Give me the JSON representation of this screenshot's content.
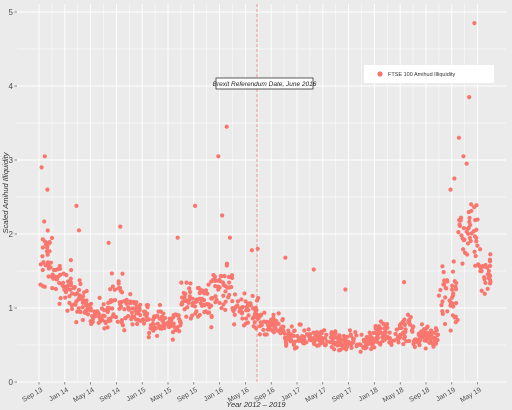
{
  "chart_data": {
    "type": "scatter",
    "xlabel": "Year 2012 – 2019",
    "ylabel": "Scaled Amihud Illiquidity",
    "ylim": [
      0,
      5
    ],
    "y_ticks": [
      "0",
      "1",
      "2",
      "3",
      "4",
      "5"
    ],
    "x_ticks": [
      "Sep 13",
      "Jan 14",
      "May 14",
      "Sep 14",
      "Jan 15",
      "May 15",
      "Sep 15",
      "Jan 16",
      "May 16",
      "Sep 16",
      "Jan 17",
      "May 17",
      "Sep 17",
      "Jan 18",
      "May 18",
      "Sep 18",
      "Jan 19",
      "May 19"
    ],
    "x_range_months": [
      0,
      72
    ],
    "grid": true,
    "legend_position": "top-right",
    "annotation": {
      "text": "Brexit Referendum Date, June 2016",
      "x_month": 33.8
    },
    "series": [
      {
        "name": "FTSE 100 Amihud Illiquidity",
        "color": "#f8766d",
        "segments": [
          {
            "start": 0,
            "end": 2.5,
            "base": 1.65,
            "spread": 0.45
          },
          {
            "start": 2.5,
            "end": 5,
            "base": 1.3,
            "spread": 0.3
          },
          {
            "start": 5,
            "end": 8,
            "base": 1.1,
            "spread": 0.25
          },
          {
            "start": 8,
            "end": 11,
            "base": 0.9,
            "spread": 0.2
          },
          {
            "start": 11,
            "end": 13,
            "base": 1.15,
            "spread": 0.3
          },
          {
            "start": 13,
            "end": 17,
            "base": 0.95,
            "spread": 0.22
          },
          {
            "start": 17,
            "end": 22,
            "base": 0.8,
            "spread": 0.18
          },
          {
            "start": 22,
            "end": 27,
            "base": 1.1,
            "spread": 0.28
          },
          {
            "start": 27,
            "end": 30,
            "base": 1.3,
            "spread": 0.3
          },
          {
            "start": 30,
            "end": 34,
            "base": 0.95,
            "spread": 0.22
          },
          {
            "start": 34,
            "end": 38,
            "base": 0.75,
            "spread": 0.15
          },
          {
            "start": 38,
            "end": 44,
            "base": 0.6,
            "spread": 0.14
          },
          {
            "start": 44,
            "end": 52,
            "base": 0.55,
            "spread": 0.12
          },
          {
            "start": 52,
            "end": 56,
            "base": 0.65,
            "spread": 0.15
          },
          {
            "start": 56,
            "end": 58,
            "base": 0.7,
            "spread": 0.2
          },
          {
            "start": 58,
            "end": 62,
            "base": 0.62,
            "spread": 0.14
          },
          {
            "start": 62,
            "end": 65,
            "base": 1.2,
            "spread": 0.5
          },
          {
            "start": 65,
            "end": 68,
            "base": 2.0,
            "spread": 0.5
          },
          {
            "start": 68,
            "end": 70,
            "base": 1.5,
            "spread": 0.3
          }
        ],
        "outliers": [
          {
            "x": 0.4,
            "y": 2.9
          },
          {
            "x": 0.9,
            "y": 3.05
          },
          {
            "x": 1.3,
            "y": 2.6
          },
          {
            "x": 5.8,
            "y": 2.38
          },
          {
            "x": 6.2,
            "y": 2.05
          },
          {
            "x": 10.8,
            "y": 1.88
          },
          {
            "x": 12.6,
            "y": 2.1
          },
          {
            "x": 21.5,
            "y": 1.95
          },
          {
            "x": 24.2,
            "y": 2.38
          },
          {
            "x": 27.8,
            "y": 3.05
          },
          {
            "x": 28.4,
            "y": 2.25
          },
          {
            "x": 29.1,
            "y": 3.45
          },
          {
            "x": 29.6,
            "y": 1.95
          },
          {
            "x": 33.0,
            "y": 1.78
          },
          {
            "x": 33.9,
            "y": 1.8
          },
          {
            "x": 38.2,
            "y": 1.68
          },
          {
            "x": 42.6,
            "y": 1.52
          },
          {
            "x": 47.5,
            "y": 1.25
          },
          {
            "x": 56.6,
            "y": 1.35
          },
          {
            "x": 63.8,
            "y": 2.6
          },
          {
            "x": 64.4,
            "y": 2.75
          },
          {
            "x": 65.1,
            "y": 3.3
          },
          {
            "x": 65.8,
            "y": 3.05
          },
          {
            "x": 66.3,
            "y": 2.95
          },
          {
            "x": 66.7,
            "y": 3.85
          },
          {
            "x": 67.0,
            "y": 2.4
          },
          {
            "x": 67.5,
            "y": 4.85
          }
        ]
      }
    ]
  }
}
